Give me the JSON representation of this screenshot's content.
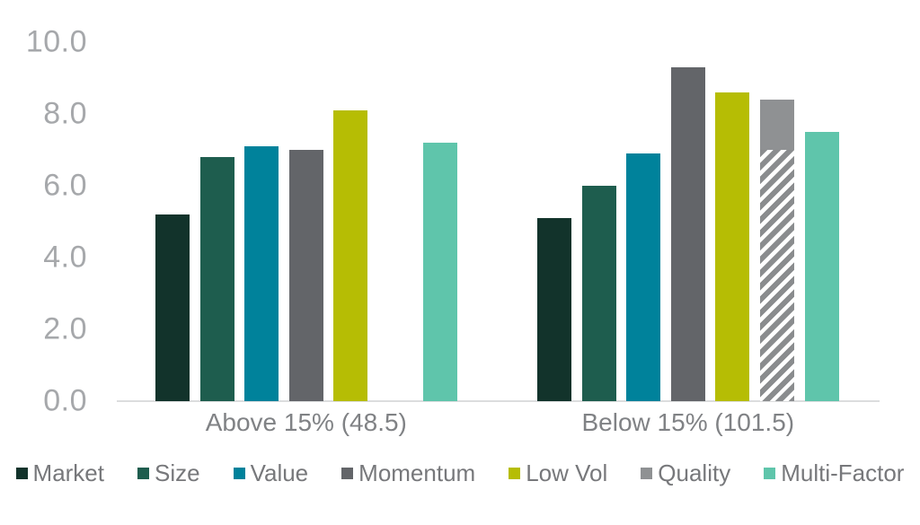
{
  "chart_data": {
    "type": "bar",
    "title": "",
    "xlabel": "",
    "ylabel": "",
    "categories": [
      "Above 15% (48.5)",
      "Below 15% (101.5)"
    ],
    "series": [
      {
        "name": "Market",
        "color": "#12332b",
        "values": [
          5.2,
          5.1
        ]
      },
      {
        "name": "Size",
        "color": "#1e5d4e",
        "values": [
          6.8,
          6.0
        ]
      },
      {
        "name": "Value",
        "color": "#00829b",
        "values": [
          7.1,
          6.9
        ]
      },
      {
        "name": "Momentum",
        "color": "#636569",
        "values": [
          7.0,
          9.3
        ]
      },
      {
        "name": "Low Vol",
        "color": "#b6bd04",
        "values": [
          8.1,
          8.6
        ]
      },
      {
        "name": "Quality",
        "color": "#8f9193",
        "values": [
          null,
          8.4
        ],
        "hatch_below": [
          null,
          7.0
        ],
        "hatch_stripe_color": "#8a8c8e",
        "hatch_bg_color": "#ffffff"
      },
      {
        "name": "Multi-Factor",
        "color": "#5fc5ab",
        "values": [
          7.2,
          7.5
        ]
      }
    ],
    "ylim": [
      0,
      10
    ],
    "yticks": [
      0,
      2,
      4,
      6,
      8,
      10
    ],
    "ytick_labels": [
      "0.0",
      "2.0",
      "4.0",
      "6.0",
      "8.0",
      "10.0"
    ],
    "grid": false,
    "legend_position": "bottom",
    "axis_line_color": "#dcddde",
    "ytick_text_color": "#a6a8ab",
    "category_text_color": "#808285",
    "legend_text_color": "#77787b"
  }
}
